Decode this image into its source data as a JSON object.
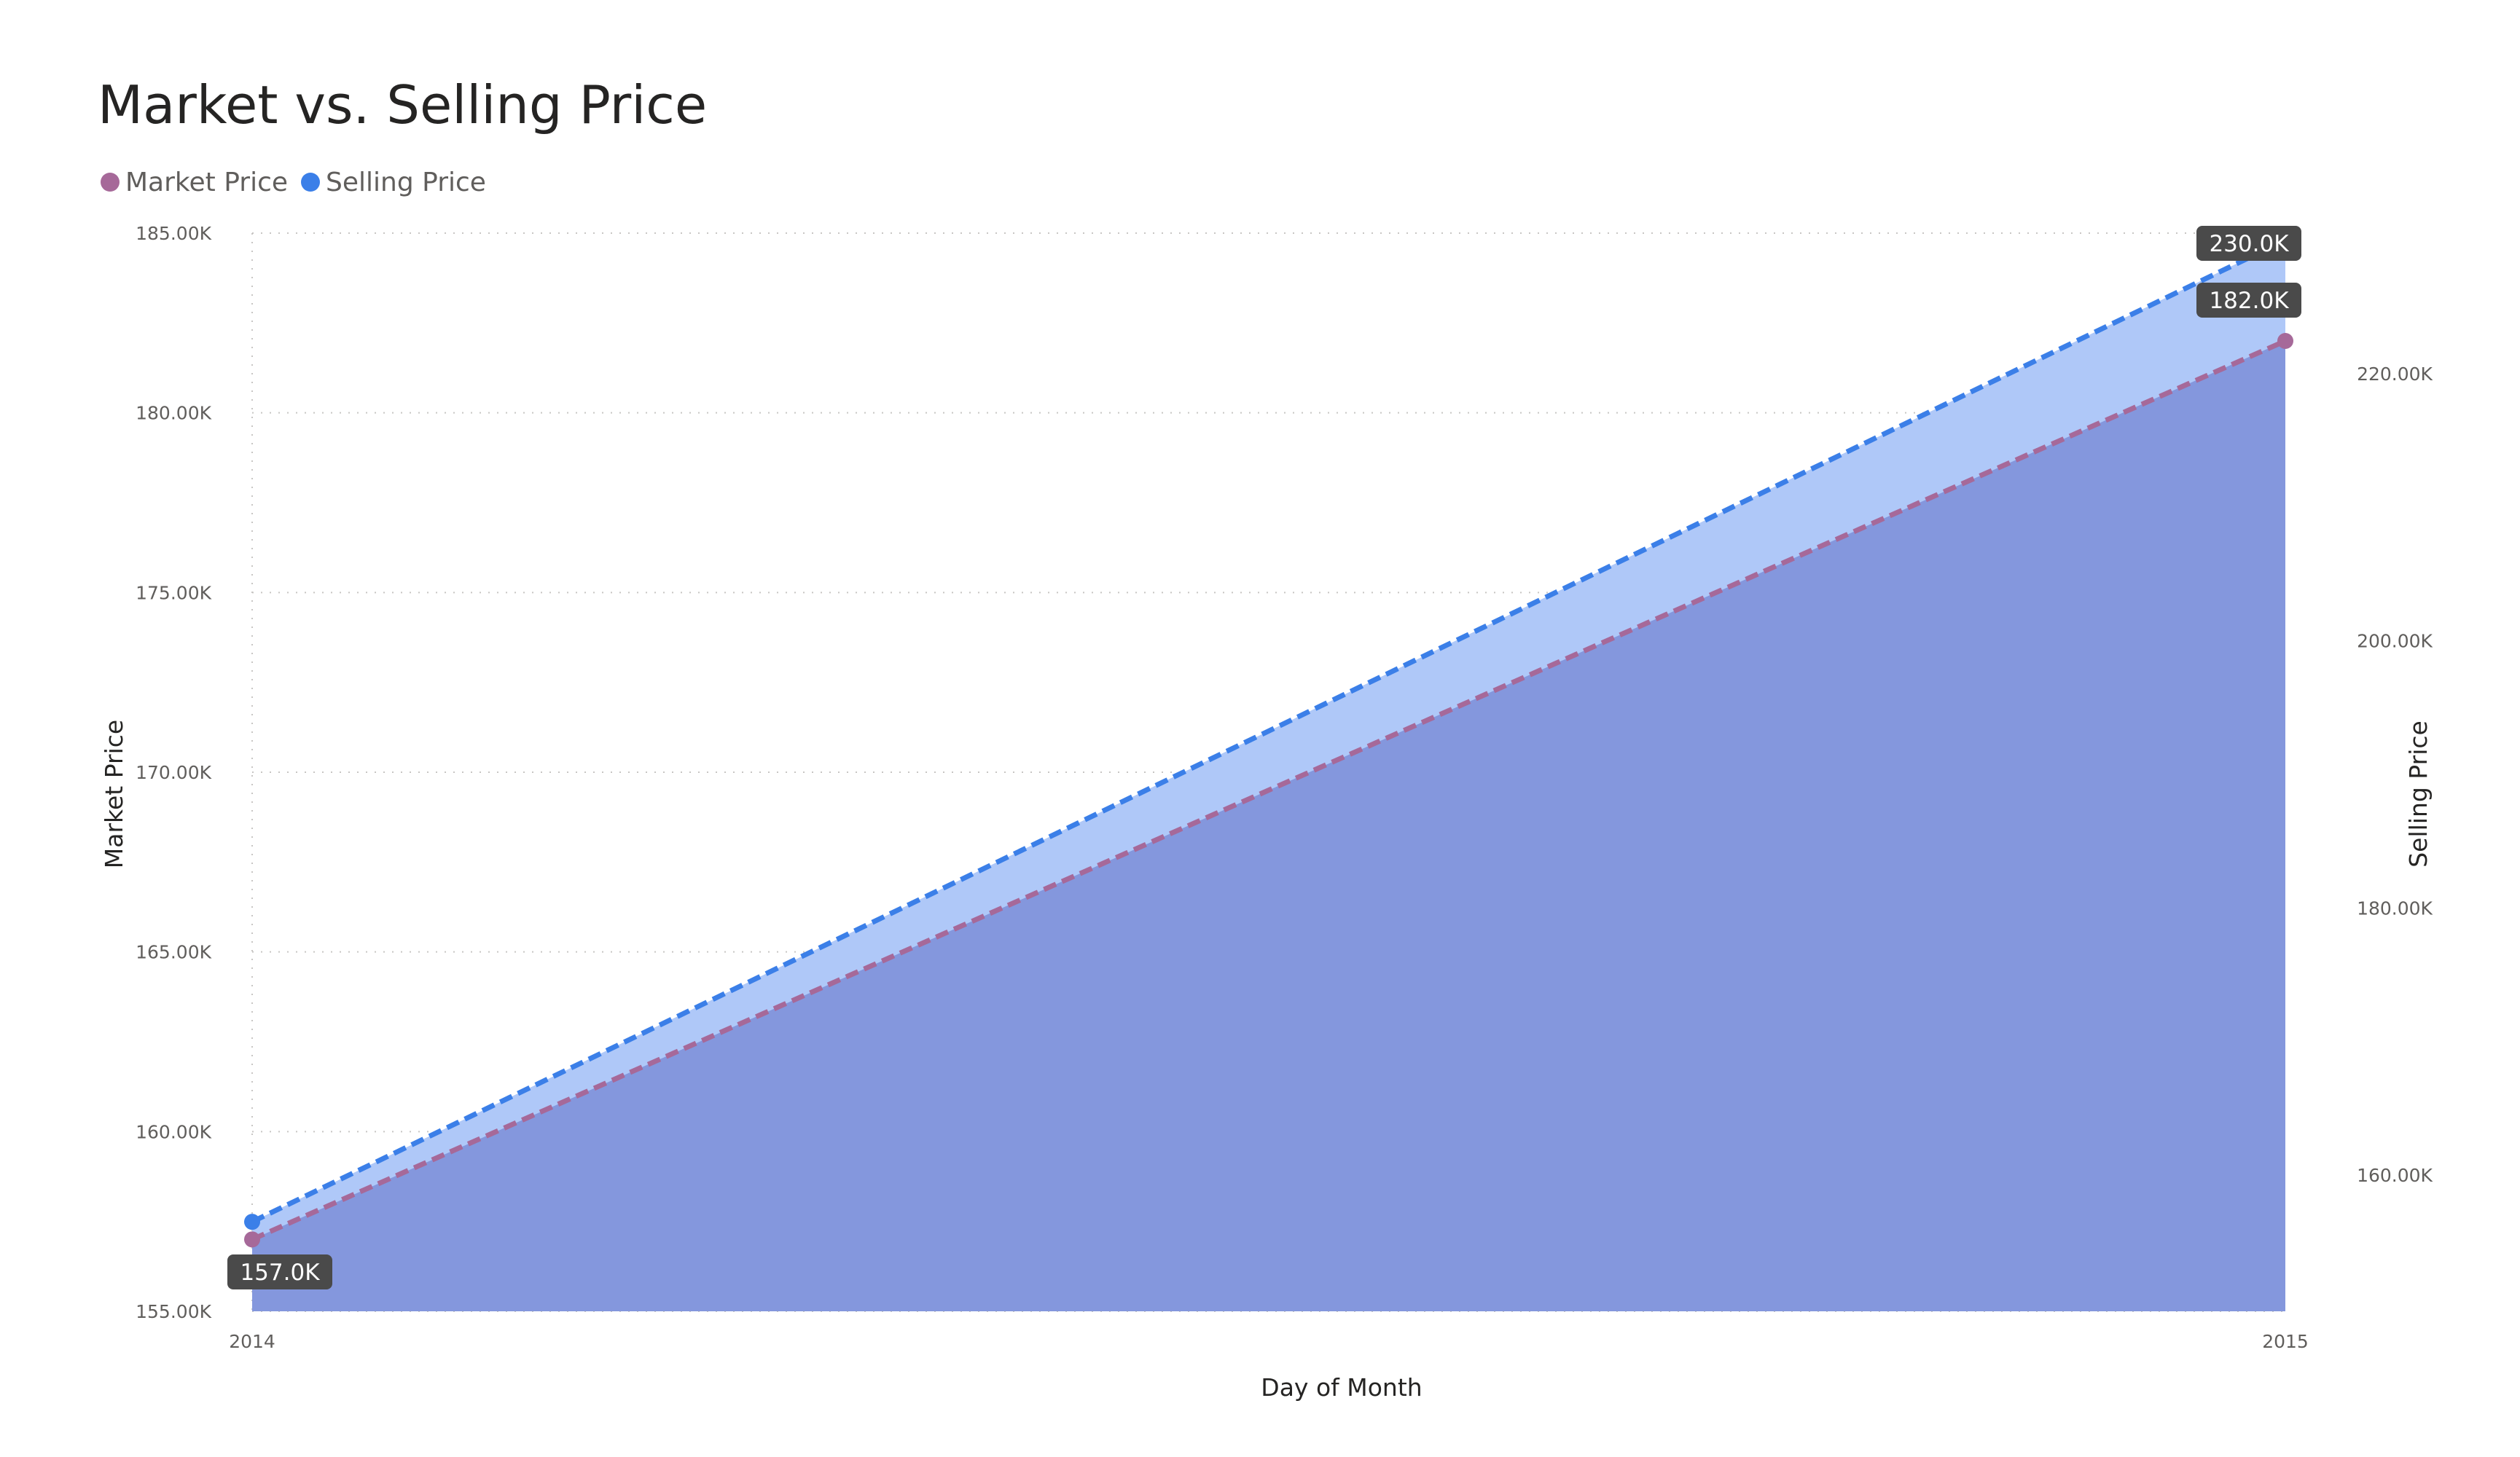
{
  "chart_data": {
    "type": "area",
    "title": "Market vs. Selling Price",
    "xlabel": "Day of Month",
    "ylabel": "Market Price",
    "y2label": "Selling Price",
    "x": [
      "2014",
      "2015"
    ],
    "ylim": [
      155000,
      185000
    ],
    "y2lim": [
      150000,
      230000
    ],
    "yticks": [
      {
        "value": 155000,
        "label": "155.00K"
      },
      {
        "value": 160000,
        "label": "160.00K"
      },
      {
        "value": 165000,
        "label": "165.00K"
      },
      {
        "value": 170000,
        "label": "170.00K"
      },
      {
        "value": 175000,
        "label": "175.00K"
      },
      {
        "value": 180000,
        "label": "180.00K"
      },
      {
        "value": 185000,
        "label": "185.00K"
      }
    ],
    "y2ticks": [
      {
        "value": 160000,
        "label": "160.00K"
      },
      {
        "value": 180000,
        "label": "180.00K"
      },
      {
        "value": 200000,
        "label": "200.00K"
      },
      {
        "value": 220000,
        "label": "220.00K"
      }
    ],
    "series": [
      {
        "name": "Market Price",
        "axis": "left",
        "color": "#A66999",
        "fill": "#8497DD",
        "values": [
          157000,
          182000
        ],
        "labels": [
          "157.0K",
          "182.0K"
        ]
      },
      {
        "name": "Selling Price",
        "axis": "right",
        "color": "#3B7FE8",
        "fill": "#AFC8F8",
        "values": [
          156500,
          230000
        ],
        "labels": [
          "",
          "230.0K"
        ]
      }
    ],
    "grid": true,
    "legend": "top-left"
  }
}
